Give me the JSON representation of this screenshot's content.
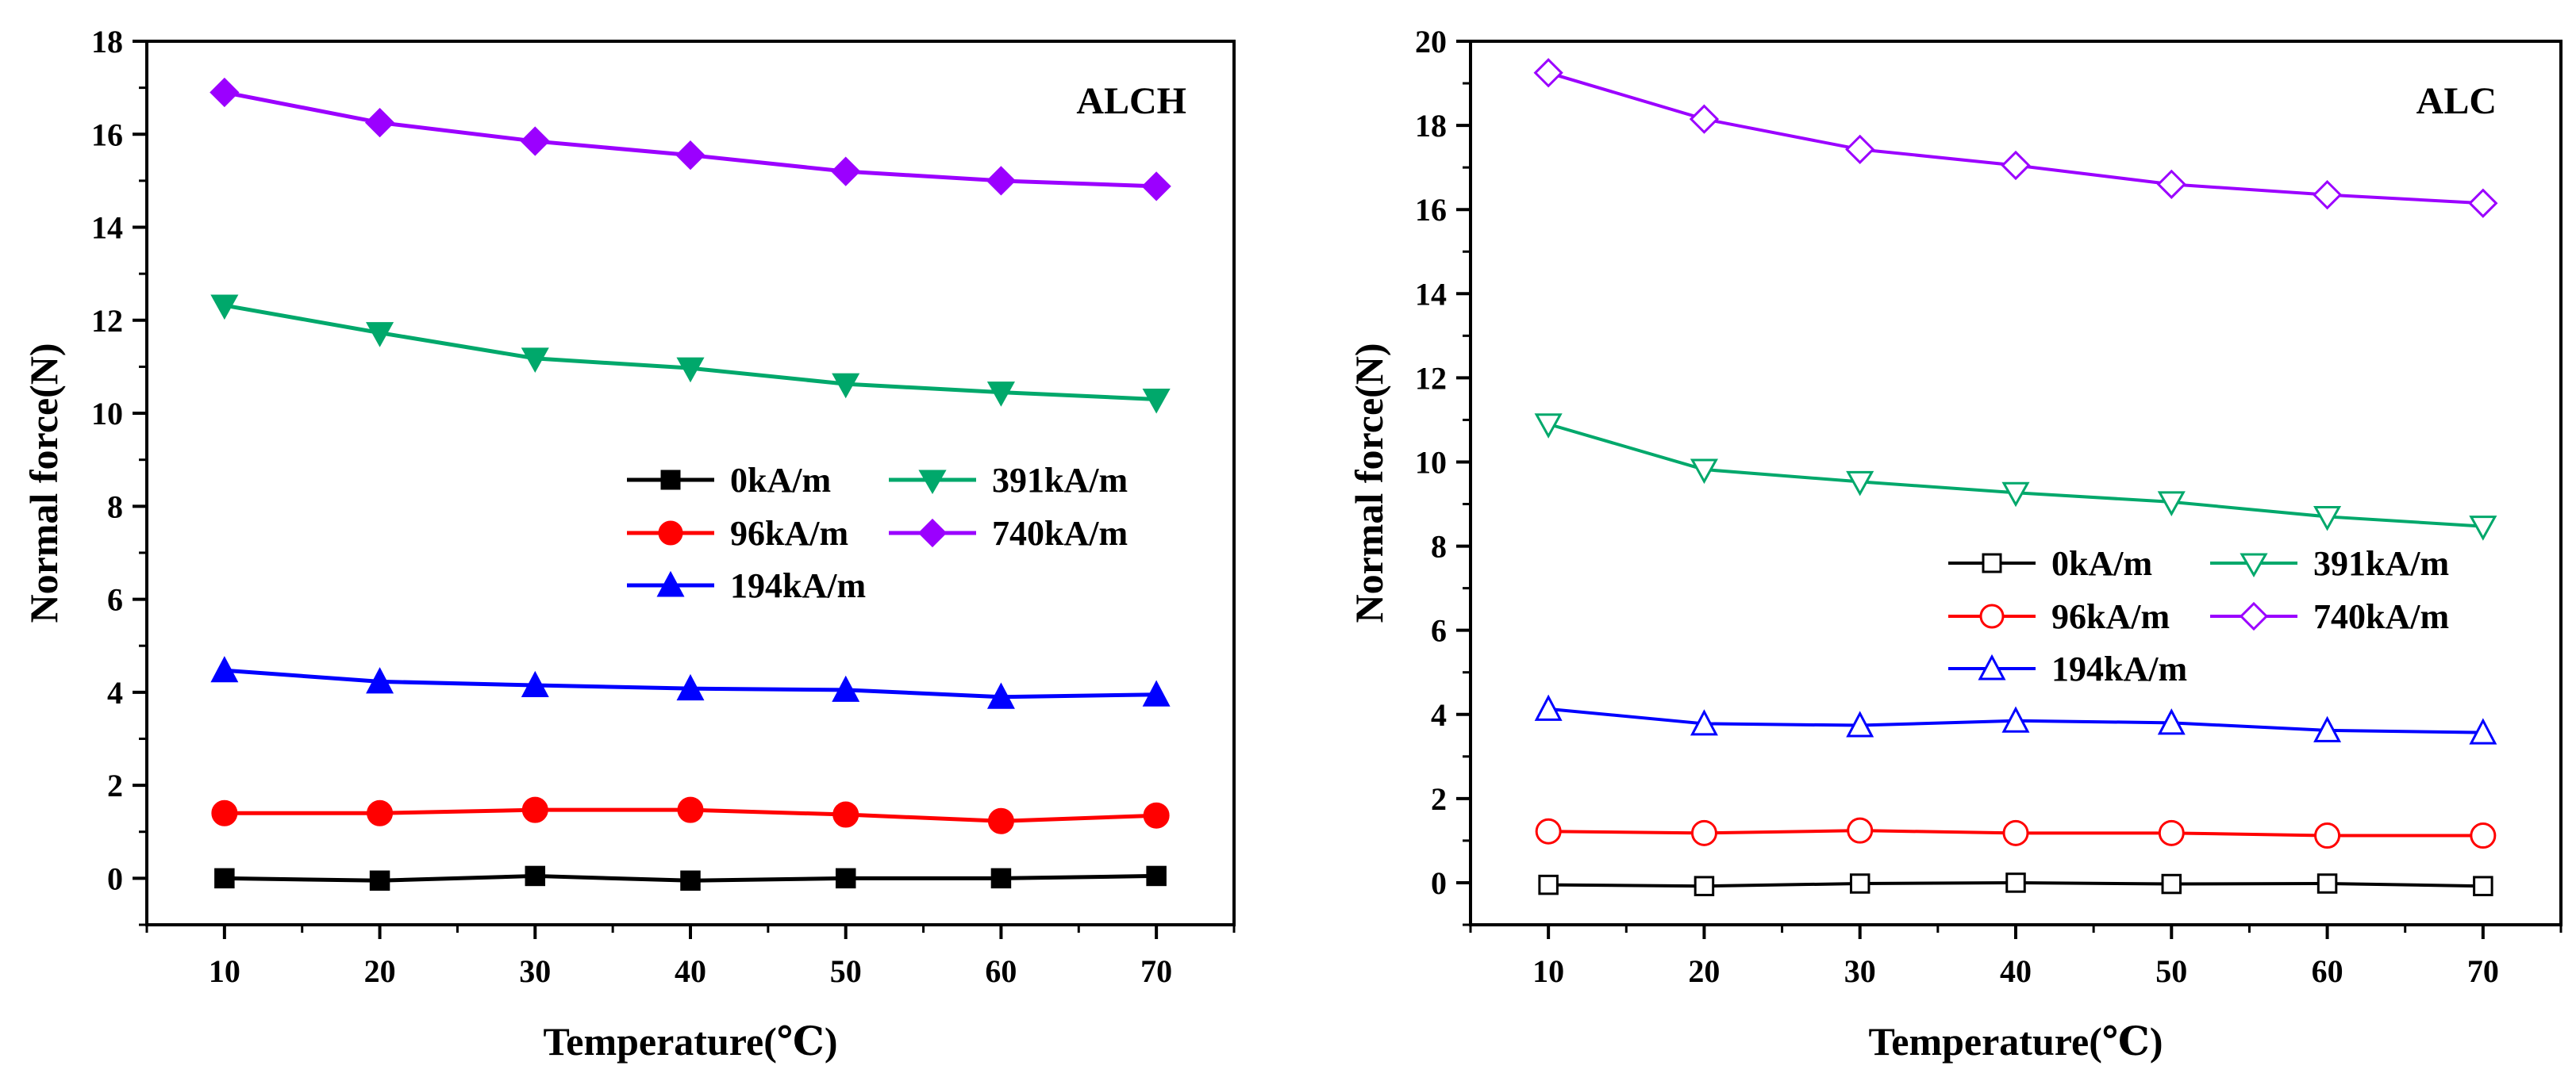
{
  "chart_data": [
    {
      "type": "line",
      "title": "ALCH",
      "xlabel": "Temperature(℃)",
      "ylabel": "Normal force(N)",
      "x": [
        10,
        20,
        30,
        40,
        50,
        60,
        70
      ],
      "xticks": [
        "10",
        "20",
        "30",
        "40",
        "50",
        "60",
        "70"
      ],
      "xlim": [
        5,
        75
      ],
      "ylim": [
        -1,
        18
      ],
      "yticks": [
        "0",
        "2",
        "4",
        "6",
        "8",
        "10",
        "12",
        "14",
        "16",
        "18"
      ],
      "marker_fill": "filled",
      "legend_position": "center-right",
      "series": [
        {
          "name": "0kA/m",
          "color": "#000000",
          "marker": "square",
          "values": [
            0.0,
            -0.05,
            0.05,
            -0.05,
            0.0,
            0.0,
            0.05
          ]
        },
        {
          "name": "96kA/m",
          "color": "#ff0000",
          "marker": "circle",
          "values": [
            1.4,
            1.4,
            1.47,
            1.47,
            1.37,
            1.23,
            1.35
          ]
        },
        {
          "name": "194kA/m",
          "color": "#0000ff",
          "marker": "triangle-up",
          "values": [
            4.47,
            4.23,
            4.15,
            4.08,
            4.05,
            3.9,
            3.95
          ]
        },
        {
          "name": "391kA/m",
          "color": "#00a86b",
          "marker": "triangle-down",
          "values": [
            12.32,
            11.73,
            11.18,
            10.97,
            10.63,
            10.45,
            10.3
          ]
        },
        {
          "name": "740kA/m",
          "color": "#9b00ff",
          "marker": "diamond",
          "values": [
            16.9,
            16.25,
            15.85,
            15.55,
            15.2,
            15.0,
            14.88
          ]
        }
      ]
    },
    {
      "type": "line",
      "title": "ALC",
      "xlabel": "Temperature(℃)",
      "ylabel": "Normal force(N)",
      "x": [
        10,
        20,
        30,
        40,
        50,
        60,
        70
      ],
      "xticks": [
        "10",
        "20",
        "30",
        "40",
        "50",
        "60",
        "70"
      ],
      "xlim": [
        5,
        75
      ],
      "ylim": [
        -1,
        20
      ],
      "yticks": [
        "0",
        "2",
        "4",
        "6",
        "8",
        "10",
        "12",
        "14",
        "16",
        "18",
        "20"
      ],
      "marker_fill": "open",
      "legend_position": "center-right",
      "series": [
        {
          "name": "0kA/m",
          "color": "#000000",
          "marker": "square",
          "values": [
            -0.05,
            -0.08,
            -0.02,
            0.0,
            -0.03,
            -0.02,
            -0.08
          ]
        },
        {
          "name": "96kA/m",
          "color": "#ff0000",
          "marker": "circle",
          "values": [
            1.22,
            1.18,
            1.24,
            1.18,
            1.18,
            1.12,
            1.12
          ]
        },
        {
          "name": "194kA/m",
          "color": "#0000ff",
          "marker": "triangle-up",
          "values": [
            4.13,
            3.78,
            3.74,
            3.85,
            3.8,
            3.62,
            3.57
          ]
        },
        {
          "name": "391kA/m",
          "color": "#00a86b",
          "marker": "triangle-down",
          "values": [
            10.9,
            9.82,
            9.53,
            9.27,
            9.05,
            8.7,
            8.47
          ]
        },
        {
          "name": "740kA/m",
          "color": "#9b00ff",
          "marker": "diamond",
          "values": [
            19.25,
            18.15,
            17.43,
            17.05,
            16.6,
            16.35,
            16.15
          ]
        }
      ]
    }
  ]
}
